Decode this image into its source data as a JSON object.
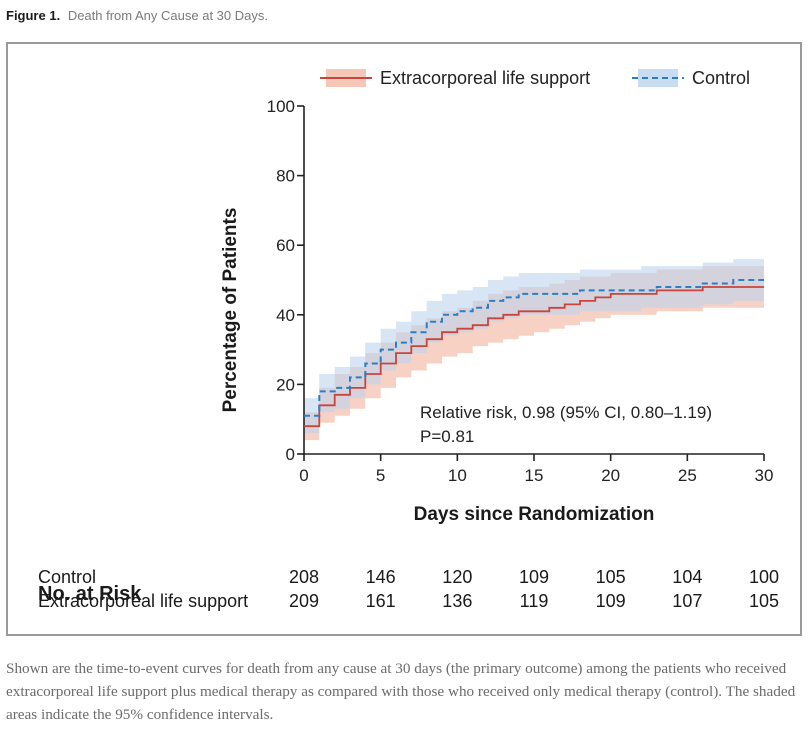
{
  "figure": {
    "label": "Figure 1.",
    "title": "Death from Any Cause at 30 Days."
  },
  "chart_data": {
    "type": "line",
    "title": "Death from Any Cause at 30 Days.",
    "xlabel": "Days since Randomization",
    "ylabel": "Percentage of Patients",
    "xlim": [
      0,
      30
    ],
    "ylim": [
      0,
      100
    ],
    "xticks": [
      0,
      5,
      10,
      15,
      20,
      25,
      30
    ],
    "yticks": [
      0,
      20,
      40,
      60,
      80,
      100
    ],
    "legend_position": "top",
    "series": [
      {
        "name": "Extracorporeal life support",
        "color": "#c9443a",
        "band_color": "#f2b9a4",
        "style": "solid-step",
        "x": [
          0,
          1,
          2,
          3,
          4,
          5,
          6,
          7,
          8,
          9,
          10,
          11,
          12,
          13,
          14,
          15,
          16,
          17,
          18,
          19,
          20,
          21,
          22,
          23,
          24,
          25,
          26,
          27,
          28,
          29,
          30
        ],
        "y": [
          8,
          14,
          17,
          19,
          23,
          26,
          29,
          31,
          33,
          35,
          36,
          37,
          39,
          40,
          41,
          41,
          42,
          43,
          44,
          45,
          46,
          46,
          46,
          47,
          47,
          47,
          48,
          48,
          48,
          48,
          48
        ],
        "ci_low": [
          4,
          9,
          11,
          13,
          16,
          19,
          22,
          24,
          26,
          28,
          29,
          31,
          32,
          33,
          34,
          35,
          36,
          37,
          38,
          39,
          40,
          40,
          40,
          41,
          41,
          41,
          42,
          42,
          42,
          42,
          42
        ],
        "ci_high": [
          12,
          19,
          23,
          25,
          29,
          32,
          35,
          37,
          39,
          41,
          42,
          44,
          46,
          47,
          48,
          48,
          49,
          50,
          51,
          51,
          52,
          52,
          52,
          53,
          53,
          53,
          54,
          54,
          54,
          54,
          54
        ]
      },
      {
        "name": "Control",
        "color": "#2b7ec4",
        "band_color": "#bcd4ef",
        "style": "dashed-step",
        "x": [
          0,
          1,
          2,
          3,
          4,
          5,
          6,
          7,
          8,
          9,
          10,
          11,
          12,
          13,
          14,
          15,
          16,
          17,
          18,
          19,
          20,
          21,
          22,
          23,
          24,
          25,
          26,
          27,
          28,
          29,
          30
        ],
        "y": [
          11,
          18,
          19,
          22,
          26,
          30,
          32,
          35,
          38,
          40,
          41,
          42,
          44,
          45,
          46,
          46,
          46,
          46,
          47,
          47,
          47,
          47,
          47,
          48,
          48,
          48,
          49,
          49,
          50,
          50,
          50
        ],
        "ci_low": [
          6,
          12,
          13,
          16,
          20,
          24,
          26,
          29,
          32,
          34,
          35,
          36,
          38,
          39,
          40,
          40,
          40,
          40,
          41,
          41,
          41,
          41,
          42,
          42,
          42,
          42,
          43,
          43,
          44,
          44,
          44
        ],
        "ci_high": [
          16,
          23,
          25,
          28,
          32,
          36,
          38,
          41,
          44,
          46,
          47,
          48,
          50,
          51,
          52,
          52,
          52,
          52,
          53,
          53,
          53,
          53,
          54,
          54,
          54,
          54,
          55,
          55,
          56,
          56,
          56
        ]
      }
    ],
    "annotations": [
      "Relative risk, 0.98 (95% CI, 0.80–1.19)",
      "P=0.81"
    ]
  },
  "at_risk": {
    "title": "No. at Risk",
    "days": [
      0,
      5,
      10,
      15,
      20,
      25,
      30
    ],
    "rows": [
      {
        "label": "Control",
        "values": [
          "208",
          "146",
          "120",
          "109",
          "105",
          "104",
          "100"
        ]
      },
      {
        "label": "Extracorporeal life support",
        "values": [
          "209",
          "161",
          "136",
          "119",
          "109",
          "107",
          "105"
        ]
      }
    ]
  },
  "caption": "Shown are the time-to-event curves for death from any cause at 30 days (the primary outcome) among the patients who received extracorporeal life support plus medical therapy as compared with those who received only medical therapy (control). The shaded areas indicate the 95% confidence intervals."
}
